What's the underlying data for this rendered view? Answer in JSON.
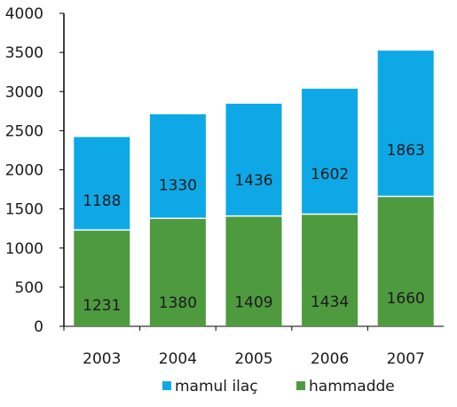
{
  "chart_data": {
    "type": "bar",
    "stacked": true,
    "categories": [
      "2003",
      "2004",
      "2005",
      "2006",
      "2007"
    ],
    "series": [
      {
        "name": "hammadde",
        "values": [
          1231,
          1380,
          1409,
          1434,
          1660
        ],
        "color": "#4e9a3f"
      },
      {
        "name": "mamul ilaç",
        "values": [
          1188,
          1330,
          1436,
          1602,
          1863
        ],
        "color": "#0ea8e6"
      }
    ],
    "ylim": [
      0,
      4000
    ],
    "yticks": [
      0,
      500,
      1000,
      1500,
      2000,
      2500,
      3000,
      3500,
      4000
    ],
    "grid": false,
    "legend": {
      "position": "bottom",
      "order": [
        "mamul ilaç",
        "hammadde"
      ]
    }
  }
}
